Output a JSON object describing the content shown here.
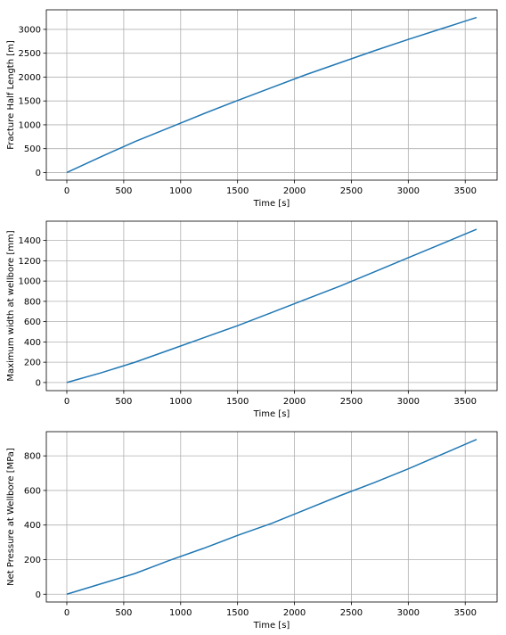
{
  "chart_data": [
    {
      "type": "line",
      "xlabel": "Time [s]",
      "ylabel": "Fracture Half Length [m]",
      "xlim": [
        -180,
        3780
      ],
      "ylim": [
        -160,
        3410
      ],
      "xticks": [
        0,
        500,
        1000,
        1500,
        2000,
        2500,
        3000,
        3500
      ],
      "yticks": [
        0,
        500,
        1000,
        1500,
        2000,
        2500,
        3000
      ],
      "grid": true,
      "series": [
        {
          "color": "#1f77b4",
          "x": [
            0,
            300,
            600,
            900,
            1200,
            1500,
            1800,
            2100,
            2400,
            2700,
            3000,
            3300,
            3600
          ],
          "y": [
            0,
            330,
            650,
            940,
            1230,
            1510,
            1780,
            2050,
            2300,
            2550,
            2790,
            3020,
            3250
          ]
        }
      ]
    },
    {
      "type": "line",
      "xlabel": "Time [s]",
      "ylabel": "Maximum width at wellbore [mm]",
      "xlim": [
        -180,
        3780
      ],
      "ylim": [
        -80,
        1590
      ],
      "xticks": [
        0,
        500,
        1000,
        1500,
        2000,
        2500,
        3000,
        3500
      ],
      "yticks": [
        0,
        200,
        400,
        600,
        800,
        1000,
        1200,
        1400
      ],
      "grid": true,
      "series": [
        {
          "color": "#1f77b4",
          "x": [
            0,
            300,
            600,
            900,
            1200,
            1500,
            1800,
            2100,
            2400,
            2700,
            3000,
            3300,
            3600
          ],
          "y": [
            0,
            95,
            200,
            320,
            440,
            560,
            690,
            820,
            950,
            1090,
            1230,
            1370,
            1510
          ]
        }
      ]
    },
    {
      "type": "line",
      "xlabel": "Time [s]",
      "ylabel": "Net Pressure at Wellbore [MPa]",
      "xlim": [
        -180,
        3780
      ],
      "ylim": [
        -45,
        940
      ],
      "xticks": [
        0,
        500,
        1000,
        1500,
        2000,
        2500,
        3000,
        3500
      ],
      "yticks": [
        0,
        200,
        400,
        600,
        800
      ],
      "grid": true,
      "series": [
        {
          "color": "#1f77b4",
          "x": [
            0,
            300,
            600,
            900,
            1200,
            1500,
            1800,
            2100,
            2400,
            2700,
            3000,
            3300,
            3600
          ],
          "y": [
            0,
            60,
            120,
            195,
            265,
            340,
            410,
            490,
            570,
            645,
            725,
            810,
            895
          ]
        }
      ]
    }
  ]
}
